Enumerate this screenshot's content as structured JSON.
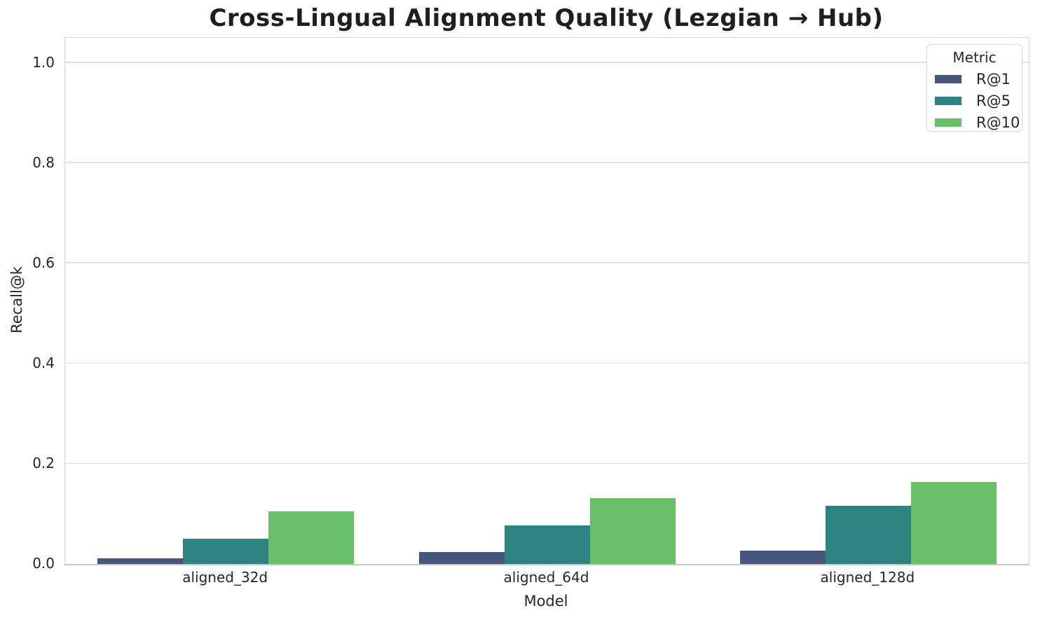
{
  "chart_data": {
    "type": "bar",
    "title": "Cross-Lingual Alignment Quality (Lezgian → Hub)",
    "xlabel": "Model",
    "ylabel": "Recall@k",
    "categories": [
      "aligned_32d",
      "aligned_64d",
      "aligned_128d"
    ],
    "series": [
      {
        "name": "R@1",
        "color": "#46547c",
        "values": [
          0.011,
          0.024,
          0.027
        ]
      },
      {
        "name": "R@5",
        "color": "#2e827f",
        "values": [
          0.05,
          0.077,
          0.116
        ]
      },
      {
        "name": "R@10",
        "color": "#6abf69",
        "values": [
          0.105,
          0.131,
          0.164
        ]
      }
    ],
    "ylim": [
      0,
      1.05
    ],
    "yticks": [
      0.0,
      0.2,
      0.4,
      0.6,
      0.8,
      1.0
    ],
    "ytick_labels": [
      "0.0",
      "0.2",
      "0.4",
      "0.6",
      "0.8",
      "1.0"
    ],
    "legend": {
      "title": "Metric",
      "position": "upper right"
    },
    "grid": "horizontal",
    "style": {
      "text_color": "#262626",
      "grid_color": "#e1e1e1",
      "spine_color": "#d5d5d5",
      "baseline_color": "#c8c8c8",
      "background": "#ffffff"
    }
  }
}
